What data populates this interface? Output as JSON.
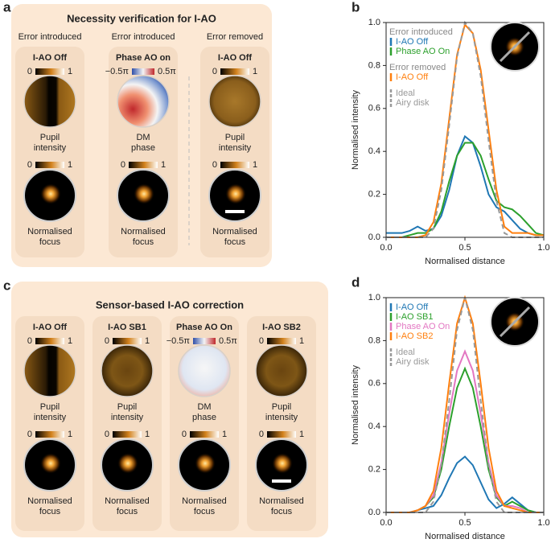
{
  "panels": [
    {
      "label": "a",
      "title": "Necessity verification for I-AO",
      "columns": [
        {
          "header": "Error introduced",
          "title": "I-AO Off",
          "pupil_colorbar": [
            0,
            1
          ],
          "pupil_caption": [
            "Pupil",
            "intensity"
          ],
          "focus_colorbar": [
            0,
            1
          ],
          "focus_caption": [
            "Normalised",
            "focus"
          ]
        },
        {
          "header": "Error introduced",
          "title": "Phase AO on",
          "pupil_colorbar": [
            "−0.5π",
            "0.5π"
          ],
          "pupil_caption": [
            "DM",
            "phase"
          ],
          "focus_colorbar": [
            0,
            1
          ],
          "focus_caption": [
            "Normalised",
            "focus"
          ]
        },
        {
          "header": "Error removed",
          "title": "I-AO Off",
          "pupil_colorbar": [
            0,
            1
          ],
          "pupil_caption": [
            "Pupil",
            "intensity"
          ],
          "focus_colorbar": [
            0,
            1
          ],
          "focus_caption": [
            "Normalised",
            "focus"
          ]
        }
      ]
    },
    {
      "label": "c",
      "title": "Sensor-based I-AO correction",
      "columns": [
        {
          "title": "I-AO Off",
          "pupil_colorbar": [
            0,
            1
          ],
          "pupil_caption": [
            "Pupil",
            "intensity"
          ],
          "focus_colorbar": [
            0,
            1
          ],
          "focus_caption": [
            "Normalised",
            "focus"
          ]
        },
        {
          "title": "I-AO SB1",
          "pupil_colorbar": [
            0,
            1
          ],
          "pupil_caption": [
            "Pupil",
            "intensity"
          ],
          "focus_colorbar": [
            0,
            1
          ],
          "focus_caption": [
            "Normalised",
            "focus"
          ]
        },
        {
          "title": "Phase AO On",
          "pupil_colorbar": [
            "−0.5π",
            "0.5π"
          ],
          "pupil_caption": [
            "DM",
            "phase"
          ],
          "focus_colorbar": [
            0,
            1
          ],
          "focus_caption": [
            "Normalised",
            "focus"
          ]
        },
        {
          "title": "I-AO SB2",
          "pupil_colorbar": [
            0,
            1
          ],
          "pupil_caption": [
            "Pupil",
            "intensity"
          ],
          "focus_colorbar": [
            0,
            1
          ],
          "focus_caption": [
            "Normalised",
            "focus"
          ]
        }
      ]
    }
  ],
  "chart_data": [
    {
      "label": "b",
      "type": "line",
      "xlabel": "Normalised distance",
      "ylabel": "Normalised intensity",
      "x": [
        0,
        0.05,
        0.1,
        0.15,
        0.2,
        0.25,
        0.3,
        0.35,
        0.4,
        0.45,
        0.5,
        0.55,
        0.6,
        0.65,
        0.7,
        0.75,
        0.8,
        0.85,
        0.9,
        0.95,
        1
      ],
      "xlim": [
        0,
        1
      ],
      "ylim": [
        0,
        1
      ],
      "xticks": [
        {
          "value": 0,
          "label": "0.0"
        },
        0.5,
        {
          "value": 1,
          "label": "1.0"
        }
      ],
      "yticks": [
        {
          "value": 0,
          "label": "0.0"
        },
        0.2,
        0.4,
        0.6,
        0.8,
        {
          "value": 1,
          "label": "1.0"
        }
      ],
      "legend_headers": [
        "Error introduced",
        "Error removed"
      ],
      "series": [
        {
          "name": "I-AO Off",
          "color": "#1f77b4",
          "values": [
            0.02,
            0.02,
            0.02,
            0.03,
            0.05,
            0.03,
            0.04,
            0.1,
            0.22,
            0.38,
            0.47,
            0.44,
            0.33,
            0.2,
            0.14,
            0.12,
            0.08,
            0.04,
            0.02,
            0.01,
            0.01
          ]
        },
        {
          "name": "Phase AO On",
          "color": "#2ca02c",
          "values": [
            0,
            0,
            0,
            0.01,
            0.02,
            0.02,
            0.04,
            0.12,
            0.26,
            0.38,
            0.44,
            0.44,
            0.38,
            0.27,
            0.17,
            0.14,
            0.13,
            0.1,
            0.06,
            0.02,
            0.01
          ]
        },
        {
          "name": "I-AO Off",
          "color": "#ff7f0e",
          "values": [
            0,
            0,
            0,
            0,
            0,
            0.01,
            0.07,
            0.25,
            0.55,
            0.85,
            0.99,
            0.95,
            0.78,
            0.5,
            0.22,
            0.05,
            0.02,
            0.02,
            0.02,
            0.01,
            0.01
          ]
        },
        {
          "name": [
            "Ideal",
            "Airy disk"
          ],
          "color": "#999999",
          "dash": true,
          "values": [
            0,
            0,
            0,
            0,
            0,
            0,
            0.04,
            0.22,
            0.52,
            0.84,
            1,
            0.95,
            0.75,
            0.45,
            0.17,
            0.02,
            0,
            0,
            0,
            0,
            0
          ]
        }
      ]
    },
    {
      "label": "d",
      "type": "line",
      "xlabel": "Normalised distance",
      "ylabel": "Normalised intensity",
      "x": [
        0,
        0.05,
        0.1,
        0.15,
        0.2,
        0.25,
        0.3,
        0.35,
        0.4,
        0.45,
        0.5,
        0.55,
        0.6,
        0.65,
        0.7,
        0.75,
        0.8,
        0.85,
        0.9,
        0.95,
        1
      ],
      "xlim": [
        0,
        1
      ],
      "ylim": [
        0,
        1
      ],
      "xticks": [
        {
          "value": 0,
          "label": "0.0"
        },
        0.5,
        {
          "value": 1,
          "label": "1.0"
        }
      ],
      "yticks": [
        {
          "value": 0,
          "label": "0.0"
        },
        0.2,
        0.4,
        0.6,
        0.8,
        {
          "value": 1,
          "label": "1.0"
        }
      ],
      "series": [
        {
          "name": "I-AO Off",
          "color": "#1f77b4",
          "values": [
            0,
            0,
            0,
            0,
            0.01,
            0.02,
            0.03,
            0.08,
            0.16,
            0.23,
            0.26,
            0.22,
            0.14,
            0.06,
            0.02,
            0.04,
            0.07,
            0.04,
            0.01,
            0,
            0
          ]
        },
        {
          "name": "I-AO SB1",
          "color": "#2ca02c",
          "values": [
            0,
            0,
            0,
            0,
            0.01,
            0.03,
            0.07,
            0.2,
            0.4,
            0.58,
            0.67,
            0.58,
            0.4,
            0.2,
            0.07,
            0.03,
            0.05,
            0.03,
            0.01,
            0,
            0
          ]
        },
        {
          "name": "Phase AO On",
          "color": "#e377c2",
          "values": [
            0,
            0,
            0,
            0,
            0.01,
            0.03,
            0.08,
            0.23,
            0.46,
            0.66,
            0.75,
            0.66,
            0.46,
            0.23,
            0.08,
            0.03,
            0.03,
            0.02,
            0,
            0,
            0
          ]
        },
        {
          "name": "I-AO SB2",
          "color": "#ff7f0e",
          "values": [
            0,
            0,
            0,
            0,
            0.01,
            0.03,
            0.1,
            0.3,
            0.6,
            0.88,
            1,
            0.88,
            0.6,
            0.3,
            0.1,
            0.03,
            0.02,
            0.01,
            0,
            0,
            0
          ]
        },
        {
          "name": [
            "Ideal",
            "Airy disk"
          ],
          "color": "#999999",
          "dash": true,
          "values": [
            0,
            0,
            0,
            0,
            0,
            0,
            0.05,
            0.22,
            0.52,
            0.85,
            1,
            0.85,
            0.52,
            0.22,
            0.05,
            0,
            0,
            0,
            0,
            0,
            0
          ]
        }
      ]
    }
  ]
}
